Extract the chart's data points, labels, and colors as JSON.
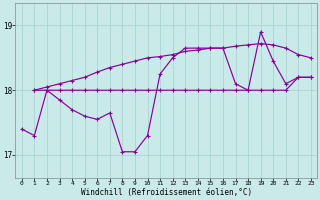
{
  "xlabel": "Windchill (Refroidissement éolien,°C)",
  "bg_color": "#caeaea",
  "grid_color": "#aad4d4",
  "line_color": "#880099",
  "ylim": [
    16.65,
    19.35
  ],
  "xlim": [
    -0.5,
    23.5
  ],
  "yticks": [
    17,
    18,
    19
  ],
  "hours": [
    0,
    1,
    2,
    3,
    4,
    5,
    6,
    7,
    8,
    9,
    10,
    11,
    12,
    13,
    14,
    15,
    16,
    17,
    18,
    19,
    20,
    21,
    22,
    23
  ],
  "line_jagged": [
    17.4,
    17.3,
    18.0,
    17.85,
    17.7,
    17.6,
    17.55,
    17.65,
    17.05,
    17.05,
    17.3,
    18.25,
    18.5,
    18.65,
    18.65,
    18.65,
    18.65,
    18.1,
    18.0,
    18.9,
    18.45,
    18.1,
    18.2,
    18.2
  ],
  "line_flat": [
    null,
    18.0,
    18.0,
    18.0,
    18.0,
    18.0,
    18.0,
    18.0,
    18.0,
    18.0,
    18.0,
    18.0,
    18.0,
    18.0,
    18.0,
    18.0,
    18.0,
    18.0,
    18.0,
    18.0,
    18.0,
    18.0,
    18.2,
    18.2
  ],
  "line_rise": [
    null,
    18.0,
    18.05,
    18.1,
    18.15,
    18.2,
    18.28,
    18.35,
    18.4,
    18.45,
    18.5,
    18.52,
    18.55,
    18.6,
    18.62,
    18.65,
    18.65,
    18.68,
    18.7,
    18.72,
    18.7,
    18.65,
    18.55,
    18.5
  ]
}
